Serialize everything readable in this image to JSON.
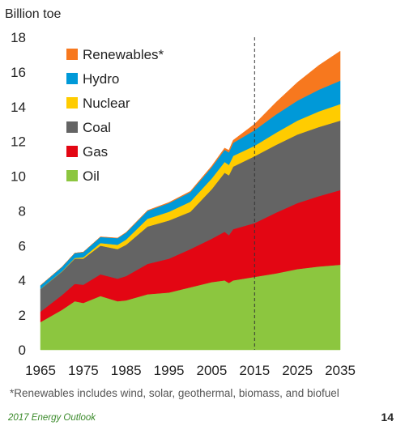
{
  "chart_data": {
    "type": "area",
    "stacked": true,
    "ylabel": "Billion toe",
    "ylim": [
      0,
      18
    ],
    "yticks": [
      0,
      2,
      4,
      6,
      8,
      10,
      12,
      14,
      16,
      18
    ],
    "xlim": [
      1965,
      2035
    ],
    "xticks": [
      1965,
      1975,
      1985,
      1995,
      2005,
      2015,
      2025,
      2035
    ],
    "projection_start": 2015,
    "x": [
      1965,
      1970,
      1973,
      1975,
      1979,
      1983,
      1985,
      1990,
      1995,
      2000,
      2005,
      2008,
      2009,
      2010,
      2015,
      2020,
      2025,
      2030,
      2035
    ],
    "series": [
      {
        "name": "Oil",
        "color": "#8cc63f",
        "values": [
          1.6,
          2.3,
          2.8,
          2.7,
          3.1,
          2.8,
          2.85,
          3.2,
          3.3,
          3.6,
          3.9,
          4.0,
          3.85,
          4.0,
          4.2,
          4.4,
          4.65,
          4.8,
          4.9
        ]
      },
      {
        "name": "Gas",
        "color": "#e30613",
        "values": [
          0.6,
          0.85,
          1.0,
          1.05,
          1.25,
          1.3,
          1.4,
          1.75,
          1.95,
          2.2,
          2.5,
          2.8,
          2.75,
          2.95,
          3.1,
          3.5,
          3.8,
          4.05,
          4.3
        ]
      },
      {
        "name": "Coal",
        "color": "#646464",
        "values": [
          1.3,
          1.35,
          1.45,
          1.5,
          1.65,
          1.7,
          1.8,
          2.15,
          2.2,
          2.15,
          2.85,
          3.4,
          3.45,
          3.6,
          3.85,
          3.9,
          3.95,
          3.98,
          4.0
        ]
      },
      {
        "name": "Nuclear",
        "color": "#ffcc00",
        "values": [
          0.01,
          0.02,
          0.04,
          0.08,
          0.15,
          0.25,
          0.3,
          0.45,
          0.5,
          0.58,
          0.62,
          0.62,
          0.6,
          0.62,
          0.6,
          0.7,
          0.8,
          0.9,
          0.95
        ]
      },
      {
        "name": "Hydro",
        "color": "#0099d8",
        "values": [
          0.2,
          0.25,
          0.28,
          0.3,
          0.35,
          0.38,
          0.4,
          0.45,
          0.5,
          0.55,
          0.65,
          0.7,
          0.72,
          0.75,
          0.9,
          1.05,
          1.15,
          1.25,
          1.35
        ]
      },
      {
        "name": "Renewables*",
        "color": "#f7781e",
        "values": [
          0.0,
          0.0,
          0.0,
          0.0,
          0.01,
          0.01,
          0.02,
          0.03,
          0.04,
          0.05,
          0.07,
          0.1,
          0.12,
          0.15,
          0.35,
          0.7,
          1.05,
          1.4,
          1.7
        ]
      }
    ],
    "legend": {
      "placement": "top-left",
      "order": [
        "Renewables*",
        "Hydro",
        "Nuclear",
        "Coal",
        "Gas",
        "Oil"
      ]
    }
  },
  "footnote": "*Renewables includes wind, solar, geothermal, biomass, and biofuel",
  "report_title": "2017 Energy Outlook",
  "page_number": "14"
}
